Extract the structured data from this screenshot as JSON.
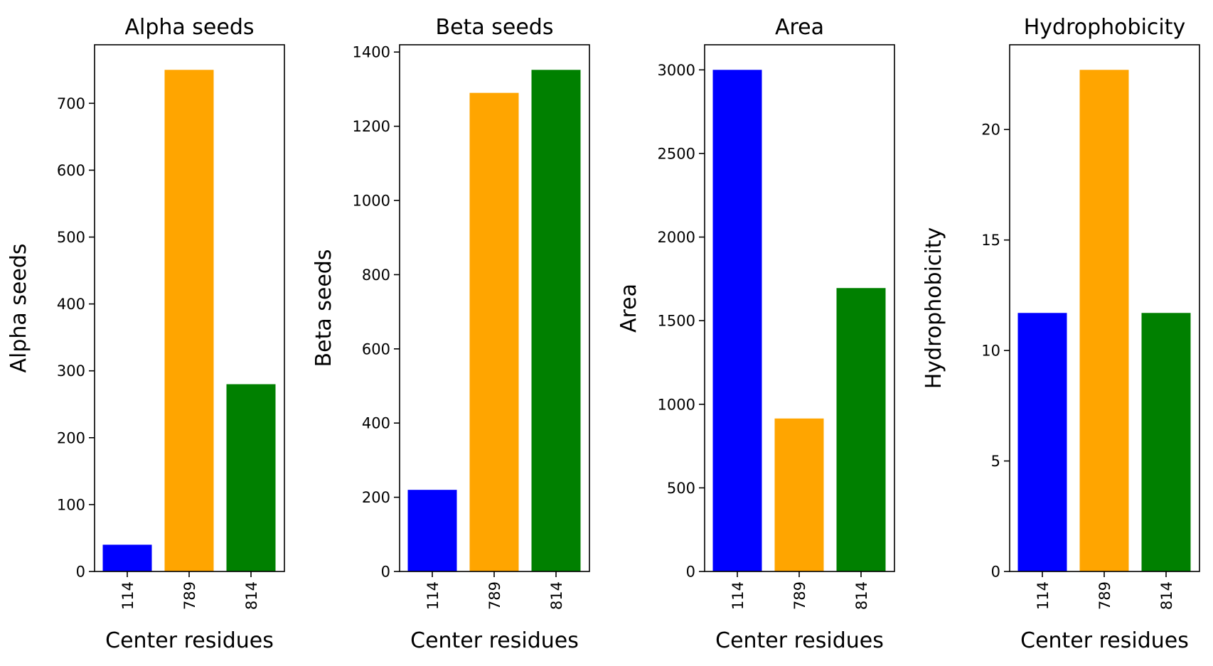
{
  "colors": {
    "114": "#0000ff",
    "789": "#ffa500",
    "814": "#008000"
  },
  "chart_data": [
    {
      "type": "bar",
      "title": "Alpha seeds",
      "xlabel": "Center residues",
      "ylabel": "Alpha seeds",
      "categories": [
        "114",
        "789",
        "814"
      ],
      "values": [
        40,
        750,
        280
      ],
      "ylim": [
        0,
        787.5
      ],
      "yticks": [
        0,
        100,
        200,
        300,
        400,
        500,
        600,
        700
      ],
      "bar_colors": [
        "#0000ff",
        "#ffa500",
        "#008000"
      ]
    },
    {
      "type": "bar",
      "title": "Beta seeds",
      "xlabel": "Center residues",
      "ylabel": "Beta seeds",
      "categories": [
        "114",
        "789",
        "814"
      ],
      "values": [
        220,
        1290,
        1352
      ],
      "ylim": [
        0,
        1419.6
      ],
      "yticks": [
        0,
        200,
        400,
        600,
        800,
        1000,
        1200,
        1400
      ],
      "bar_colors": [
        "#0000ff",
        "#ffa500",
        "#008000"
      ]
    },
    {
      "type": "bar",
      "title": "Area",
      "xlabel": "Center residues",
      "ylabel": "Area",
      "categories": [
        "114",
        "789",
        "814"
      ],
      "values": [
        3000,
        915,
        1695
      ],
      "ylim": [
        0,
        3150
      ],
      "yticks": [
        0,
        500,
        1000,
        1500,
        2000,
        2500,
        3000
      ],
      "bar_colors": [
        "#0000ff",
        "#ffa500",
        "#008000"
      ]
    },
    {
      "type": "bar",
      "title": "Hydrophobicity",
      "xlabel": "Center residues",
      "ylabel": "Hydrophobicity",
      "categories": [
        "114",
        "789",
        "814"
      ],
      "values": [
        11.7,
        22.7,
        11.7
      ],
      "ylim": [
        0,
        23.835
      ],
      "yticks": [
        0,
        5,
        10,
        15,
        20
      ],
      "bar_colors": [
        "#0000ff",
        "#ffa500",
        "#008000"
      ]
    }
  ]
}
